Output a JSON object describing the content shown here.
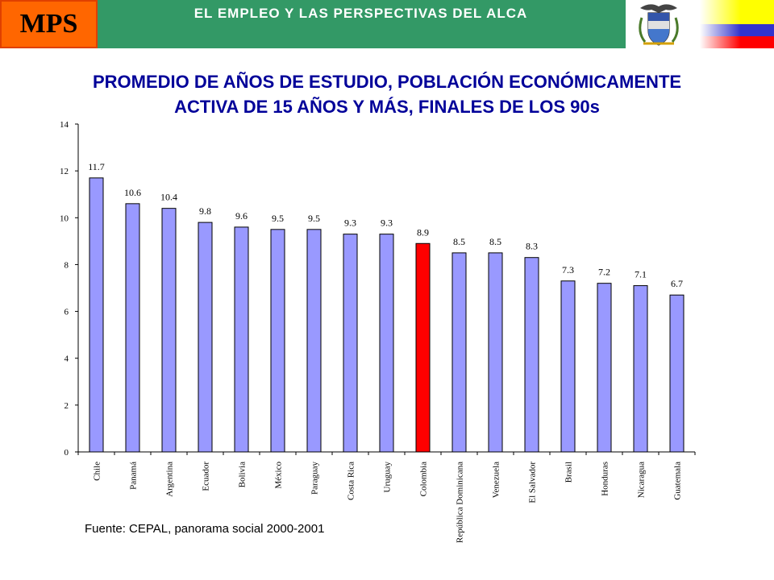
{
  "header": {
    "logo_text": "MPS",
    "title": "EL EMPLEO Y LAS PERSPECTIVAS DEL ALCA",
    "coat_of_arms_icon": "colombia-coat-of-arms-icon",
    "flag_icon": "colombia-flag-icon",
    "colors": {
      "bar": "#339966",
      "logo": "#ff6600",
      "flag_yellow": "#ffff00",
      "flag_blue": "#3333cc",
      "flag_red": "#ff0000"
    }
  },
  "title": {
    "line1": "PROMEDIO DE AÑOS DE ESTUDIO, POBLACIÓN ECONÓMICAMENTE",
    "line2": "ACTIVA DE 15 AÑOS Y MÁS, FINALES DE LOS 90s"
  },
  "source": "Fuente: CEPAL, panorama social 2000-2001",
  "chart_data": {
    "type": "bar",
    "categories": [
      "Chile",
      "Panamá",
      "Argentina",
      "Ecuador",
      "Bolivia",
      "México",
      "Paraguay",
      "Costa Rica",
      "Uruguay",
      "Colombia",
      "República Dominicana",
      "Venezuela",
      "El Salvador",
      "Brasil",
      "Honduras",
      "Nicaragua",
      "Guatemala"
    ],
    "values": [
      11.7,
      10.6,
      10.4,
      9.8,
      9.6,
      9.5,
      9.5,
      9.3,
      9.3,
      8.9,
      8.5,
      8.5,
      8.3,
      7.3,
      7.2,
      7.1,
      6.7
    ],
    "data_labels": [
      "11.7",
      "10.6",
      "10.4",
      "9.8",
      "9.6",
      "9.5",
      "9.5",
      "9.3",
      "9.3",
      "8.9",
      "8.5",
      "8.5",
      "8.3",
      "7.3",
      "7.2",
      "7.1",
      "6.7"
    ],
    "ylim": [
      0,
      14
    ],
    "yticks": [
      0,
      2,
      4,
      6,
      8,
      10,
      12,
      14
    ],
    "bar_color": "#9999ff",
    "highlight_category": "Colombia",
    "highlight_color": "#ff0000",
    "grid": false,
    "legend": false
  }
}
